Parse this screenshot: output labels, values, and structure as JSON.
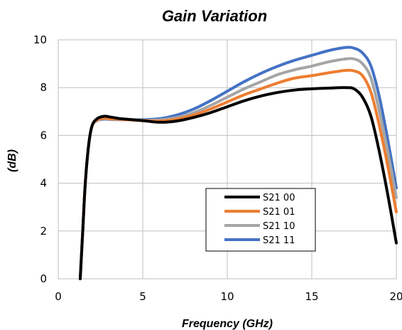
{
  "chart_data": {
    "type": "line",
    "title": "Gain Variation",
    "xlabel": "Frequency (GHz)",
    "ylabel": "(dB)",
    "xlim": [
      0,
      20
    ],
    "ylim": [
      0,
      10
    ],
    "x_ticks": [
      0,
      5,
      10,
      15,
      20
    ],
    "y_ticks": [
      0,
      2,
      4,
      6,
      8,
      10
    ],
    "grid": true,
    "legend_position": "lower-right",
    "series": [
      {
        "name": "S21 00",
        "color": "#000000",
        "x": [
          1.3,
          1.45,
          1.6,
          1.8,
          2.0,
          2.3,
          2.7,
          3.0,
          3.5,
          4.0,
          5.0,
          6.0,
          7.0,
          8.0,
          9.0,
          10.0,
          11.0,
          12.0,
          13.0,
          14.0,
          15.0,
          16.0,
          17.0,
          17.5,
          18.0,
          18.5,
          19.0,
          19.5,
          20.0
        ],
        "y": [
          0.0,
          2.0,
          4.0,
          5.6,
          6.4,
          6.7,
          6.8,
          6.78,
          6.72,
          6.68,
          6.62,
          6.55,
          6.6,
          6.75,
          6.95,
          7.2,
          7.45,
          7.65,
          7.8,
          7.9,
          7.95,
          7.98,
          8.0,
          7.95,
          7.6,
          6.8,
          5.3,
          3.5,
          1.5
        ]
      },
      {
        "name": "S21 01",
        "color": "#ED7D31",
        "x": [
          1.3,
          1.45,
          1.6,
          1.8,
          2.0,
          2.3,
          2.7,
          3.0,
          3.5,
          4.0,
          5.0,
          6.0,
          7.0,
          8.0,
          9.0,
          10.0,
          11.0,
          12.0,
          13.0,
          14.0,
          15.0,
          16.0,
          17.0,
          17.5,
          18.0,
          18.5,
          19.0,
          19.5,
          20.0
        ],
        "y": [
          0.0,
          2.0,
          4.0,
          5.6,
          6.4,
          6.65,
          6.72,
          6.7,
          6.68,
          6.66,
          6.62,
          6.6,
          6.68,
          6.85,
          7.1,
          7.4,
          7.7,
          7.95,
          8.2,
          8.4,
          8.5,
          8.62,
          8.72,
          8.7,
          8.5,
          7.8,
          6.4,
          4.7,
          2.8
        ]
      },
      {
        "name": "S21 10",
        "color": "#A5A5A5",
        "x": [
          1.3,
          1.45,
          1.6,
          1.8,
          2.0,
          2.3,
          2.7,
          3.0,
          3.5,
          4.0,
          5.0,
          6.0,
          7.0,
          8.0,
          9.0,
          10.0,
          11.0,
          12.0,
          13.0,
          14.0,
          15.0,
          16.0,
          17.0,
          17.5,
          18.0,
          18.5,
          19.0,
          19.5,
          20.0
        ],
        "y": [
          0.0,
          2.0,
          4.0,
          5.6,
          6.4,
          6.62,
          6.7,
          6.68,
          6.67,
          6.66,
          6.64,
          6.65,
          6.75,
          6.95,
          7.25,
          7.6,
          7.95,
          8.25,
          8.55,
          8.75,
          8.9,
          9.08,
          9.2,
          9.2,
          9.0,
          8.4,
          7.0,
          5.3,
          3.4
        ]
      },
      {
        "name": "S21 11",
        "color": "#4472C4",
        "x": [
          1.3,
          1.45,
          1.6,
          1.8,
          2.0,
          2.3,
          2.7,
          3.0,
          3.5,
          4.0,
          5.0,
          6.0,
          7.0,
          8.0,
          9.0,
          10.0,
          11.0,
          12.0,
          13.0,
          14.0,
          15.0,
          16.0,
          17.0,
          17.5,
          18.0,
          18.5,
          19.0,
          19.5,
          20.0
        ],
        "y": [
          0.0,
          2.0,
          4.0,
          5.6,
          6.4,
          6.62,
          6.68,
          6.67,
          6.66,
          6.66,
          6.66,
          6.7,
          6.85,
          7.1,
          7.45,
          7.85,
          8.25,
          8.6,
          8.9,
          9.15,
          9.35,
          9.55,
          9.68,
          9.65,
          9.45,
          8.9,
          7.6,
          5.8,
          3.8
        ]
      }
    ]
  }
}
